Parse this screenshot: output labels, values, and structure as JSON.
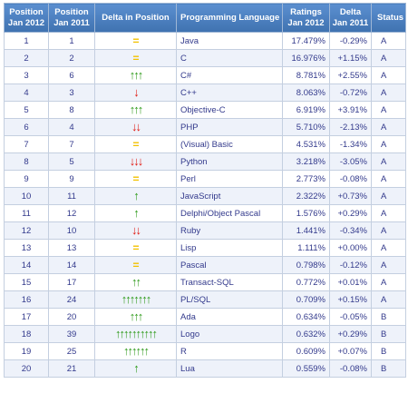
{
  "headers": {
    "pos2012": "Position Jan 2012",
    "pos2011": "Position Jan 2011",
    "delta": "Delta in Position",
    "language": "Programming Language",
    "ratings": "Ratings Jan 2012",
    "delta_rating": "Delta Jan 2011",
    "status": "Status"
  },
  "colors": {
    "header": "#4a7ebb",
    "up": "#2f9b1c",
    "down": "#e01a12",
    "same": "#f2c200",
    "text": "#333a8c"
  },
  "rows": [
    {
      "pos2012": "1",
      "pos2011": "1",
      "change": "same",
      "arrows": "=",
      "count": 0,
      "language": "Java",
      "rating": "17.479%",
      "delta": "-0.29%",
      "status": "A"
    },
    {
      "pos2012": "2",
      "pos2011": "2",
      "change": "same",
      "arrows": "=",
      "count": 0,
      "language": "C",
      "rating": "16.976%",
      "delta": "+1.15%",
      "status": "A"
    },
    {
      "pos2012": "3",
      "pos2011": "6",
      "change": "up",
      "arrows": "↑↑↑",
      "count": 3,
      "language": "C#",
      "rating": "8.781%",
      "delta": "+2.55%",
      "status": "A"
    },
    {
      "pos2012": "4",
      "pos2011": "3",
      "change": "down",
      "arrows": "↓",
      "count": 1,
      "language": "C++",
      "rating": "8.063%",
      "delta": "-0.72%",
      "status": "A"
    },
    {
      "pos2012": "5",
      "pos2011": "8",
      "change": "up",
      "arrows": "↑↑↑",
      "count": 3,
      "language": "Objective-C",
      "rating": "6.919%",
      "delta": "+3.91%",
      "status": "A"
    },
    {
      "pos2012": "6",
      "pos2011": "4",
      "change": "down",
      "arrows": "↓↓",
      "count": 2,
      "language": "PHP",
      "rating": "5.710%",
      "delta": "-2.13%",
      "status": "A"
    },
    {
      "pos2012": "7",
      "pos2011": "7",
      "change": "same",
      "arrows": "=",
      "count": 0,
      "language": "(Visual) Basic",
      "rating": "4.531%",
      "delta": "-1.34%",
      "status": "A"
    },
    {
      "pos2012": "8",
      "pos2011": "5",
      "change": "down",
      "arrows": "↓↓↓",
      "count": 3,
      "language": "Python",
      "rating": "3.218%",
      "delta": "-3.05%",
      "status": "A"
    },
    {
      "pos2012": "9",
      "pos2011": "9",
      "change": "same",
      "arrows": "=",
      "count": 0,
      "language": "Perl",
      "rating": "2.773%",
      "delta": "-0.08%",
      "status": "A"
    },
    {
      "pos2012": "10",
      "pos2011": "11",
      "change": "up",
      "arrows": "↑",
      "count": 1,
      "language": "JavaScript",
      "rating": "2.322%",
      "delta": "+0.73%",
      "status": "A"
    },
    {
      "pos2012": "11",
      "pos2011": "12",
      "change": "up",
      "arrows": "↑",
      "count": 1,
      "language": "Delphi/Object Pascal",
      "rating": "1.576%",
      "delta": "+0.29%",
      "status": "A"
    },
    {
      "pos2012": "12",
      "pos2011": "10",
      "change": "down",
      "arrows": "↓↓",
      "count": 2,
      "language": "Ruby",
      "rating": "1.441%",
      "delta": "-0.34%",
      "status": "A"
    },
    {
      "pos2012": "13",
      "pos2011": "13",
      "change": "same",
      "arrows": "=",
      "count": 0,
      "language": "Lisp",
      "rating": "1.111%",
      "delta": "+0.00%",
      "status": "A"
    },
    {
      "pos2012": "14",
      "pos2011": "14",
      "change": "same",
      "arrows": "=",
      "count": 0,
      "language": "Pascal",
      "rating": "0.798%",
      "delta": "-0.12%",
      "status": "A"
    },
    {
      "pos2012": "15",
      "pos2011": "17",
      "change": "up",
      "arrows": "↑↑",
      "count": 2,
      "language": "Transact-SQL",
      "rating": "0.772%",
      "delta": "+0.01%",
      "status": "A"
    },
    {
      "pos2012": "16",
      "pos2011": "24",
      "change": "up",
      "arrows": "↑↑↑↑↑↑↑",
      "count": 7,
      "language": "PL/SQL",
      "rating": "0.709%",
      "delta": "+0.15%",
      "status": "A"
    },
    {
      "pos2012": "17",
      "pos2011": "20",
      "change": "up",
      "arrows": "↑↑↑",
      "count": 3,
      "language": "Ada",
      "rating": "0.634%",
      "delta": "-0.05%",
      "status": "B"
    },
    {
      "pos2012": "18",
      "pos2011": "39",
      "change": "up",
      "arrows": "↑↑↑↑↑↑↑↑↑↑",
      "count": 10,
      "language": "Logo",
      "rating": "0.632%",
      "delta": "+0.29%",
      "status": "B"
    },
    {
      "pos2012": "19",
      "pos2011": "25",
      "change": "up",
      "arrows": "↑↑↑↑↑↑",
      "count": 6,
      "language": "R",
      "rating": "0.609%",
      "delta": "+0.07%",
      "status": "B"
    },
    {
      "pos2012": "20",
      "pos2011": "21",
      "change": "up",
      "arrows": "↑",
      "count": 1,
      "language": "Lua",
      "rating": "0.559%",
      "delta": "-0.08%",
      "status": "B"
    }
  ]
}
